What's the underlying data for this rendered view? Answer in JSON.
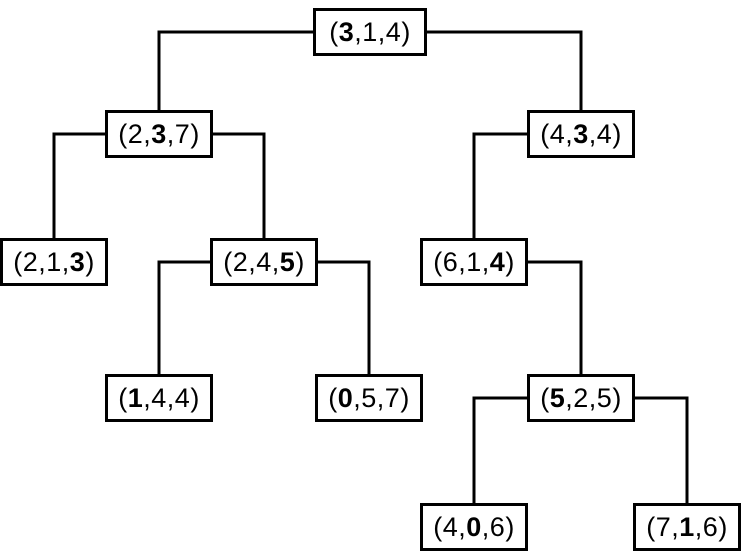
{
  "diagram": {
    "type": "kd-tree",
    "line_color": "#000000",
    "nodes": [
      {
        "id": "root",
        "parent": null,
        "side": null,
        "values": [
          "3",
          "1",
          "4"
        ],
        "split_index": 0,
        "label": "(3,1,4)"
      },
      {
        "id": "n237",
        "parent": "root",
        "side": "left",
        "values": [
          "2",
          "3",
          "7"
        ],
        "split_index": 1,
        "label": "(2,3,7)"
      },
      {
        "id": "n434",
        "parent": "root",
        "side": "right",
        "values": [
          "4",
          "3",
          "4"
        ],
        "split_index": 1,
        "label": "(4,3,4)"
      },
      {
        "id": "n213",
        "parent": "n237",
        "side": "left",
        "values": [
          "2",
          "1",
          "3"
        ],
        "split_index": 2,
        "label": "(2,1,3)"
      },
      {
        "id": "n245",
        "parent": "n237",
        "side": "right",
        "values": [
          "2",
          "4",
          "5"
        ],
        "split_index": 2,
        "label": "(2,4,5)"
      },
      {
        "id": "n614",
        "parent": "n434",
        "side": "left",
        "values": [
          "6",
          "1",
          "4"
        ],
        "split_index": 2,
        "label": "(6,1,4)"
      },
      {
        "id": "n144",
        "parent": "n245",
        "side": "left",
        "values": [
          "1",
          "4",
          "4"
        ],
        "split_index": 0,
        "label": "(1,4,4)"
      },
      {
        "id": "n057",
        "parent": "n245",
        "side": "right",
        "values": [
          "0",
          "5",
          "7"
        ],
        "split_index": 0,
        "label": "(0,5,7)"
      },
      {
        "id": "n525",
        "parent": "n614",
        "side": "right",
        "values": [
          "5",
          "2",
          "5"
        ],
        "split_index": 0,
        "label": "(5,2,5)"
      },
      {
        "id": "n406",
        "parent": "n525",
        "side": "left",
        "values": [
          "4",
          "0",
          "6"
        ],
        "split_index": 1,
        "label": "(4,0,6)"
      },
      {
        "id": "n716",
        "parent": "n525",
        "side": "right",
        "values": [
          "7",
          "1",
          "6"
        ],
        "split_index": 1,
        "label": "(7,1,6)"
      }
    ]
  }
}
